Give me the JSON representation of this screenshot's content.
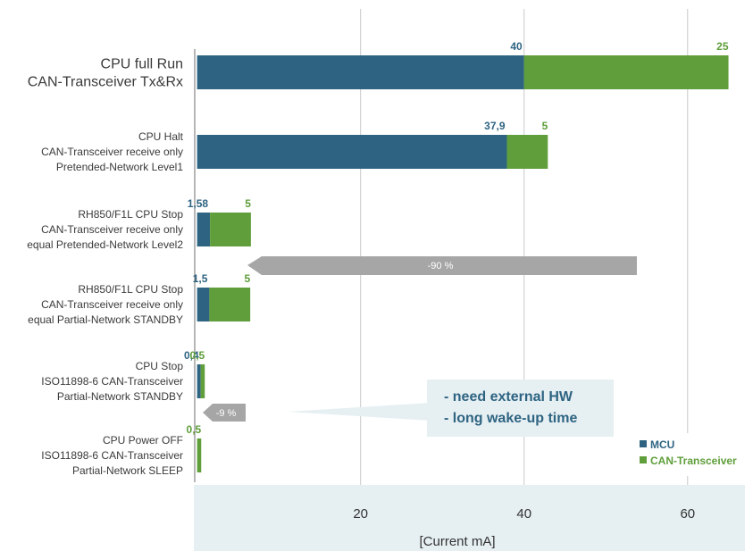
{
  "chart_data": {
    "type": "bar",
    "stacked": true,
    "orientation": "horizontal",
    "xlabel": "[Current mA]",
    "xlim": [
      -0.4,
      68
    ],
    "xticks": [
      20,
      40,
      60
    ],
    "grid": true,
    "legend_position": "bottom-right",
    "categories": [
      [
        "CPU full Run",
        "CAN-Transceiver Tx&Rx"
      ],
      [
        "CPU Halt",
        "CAN-Transceiver receive only",
        "Pretended-Network Level1"
      ],
      [
        "RH850/F1L CPU Stop",
        "CAN-Transceiver receive only",
        "equal Pretended-Network Level2"
      ],
      [
        "RH850/F1L CPU Stop",
        "CAN-Transceiver receive only",
        "equal Partial-Network STANDBY"
      ],
      [
        "CPU Stop",
        "ISO11898-6 CAN-Transceiver",
        "Partial-Network STANDBY"
      ],
      [
        "CPU Power OFF",
        "ISO11898-6 CAN-Transceiver",
        "Partial-Network SLEEP"
      ]
    ],
    "series": [
      {
        "name": "MCU",
        "color": "#2e6482",
        "values": [
          40,
          37.9,
          1.58,
          1.5,
          0.4,
          0
        ],
        "labels": [
          "40",
          "37,9",
          "1,58",
          "1,5",
          "0,4",
          ""
        ]
      },
      {
        "name": "CAN-Transceiver",
        "color": "#5f9e3a",
        "values": [
          25,
          5,
          5,
          5,
          0.5,
          0.5
        ],
        "labels": [
          "25",
          "5",
          "5",
          "5",
          "0,5",
          "0,5"
        ]
      }
    ],
    "annotations": {
      "arrow_large": "-90 %",
      "arrow_small": "-9 %",
      "callout": [
        "- need external HW",
        "- long wake-up time"
      ]
    }
  },
  "colors": {
    "axis_band": "#e6eff2",
    "arrow_gray": "#a6a6a6",
    "callout_bg": "#e6eff2",
    "grid": "#c8c8c8",
    "baseline": "#6e6e6e"
  }
}
